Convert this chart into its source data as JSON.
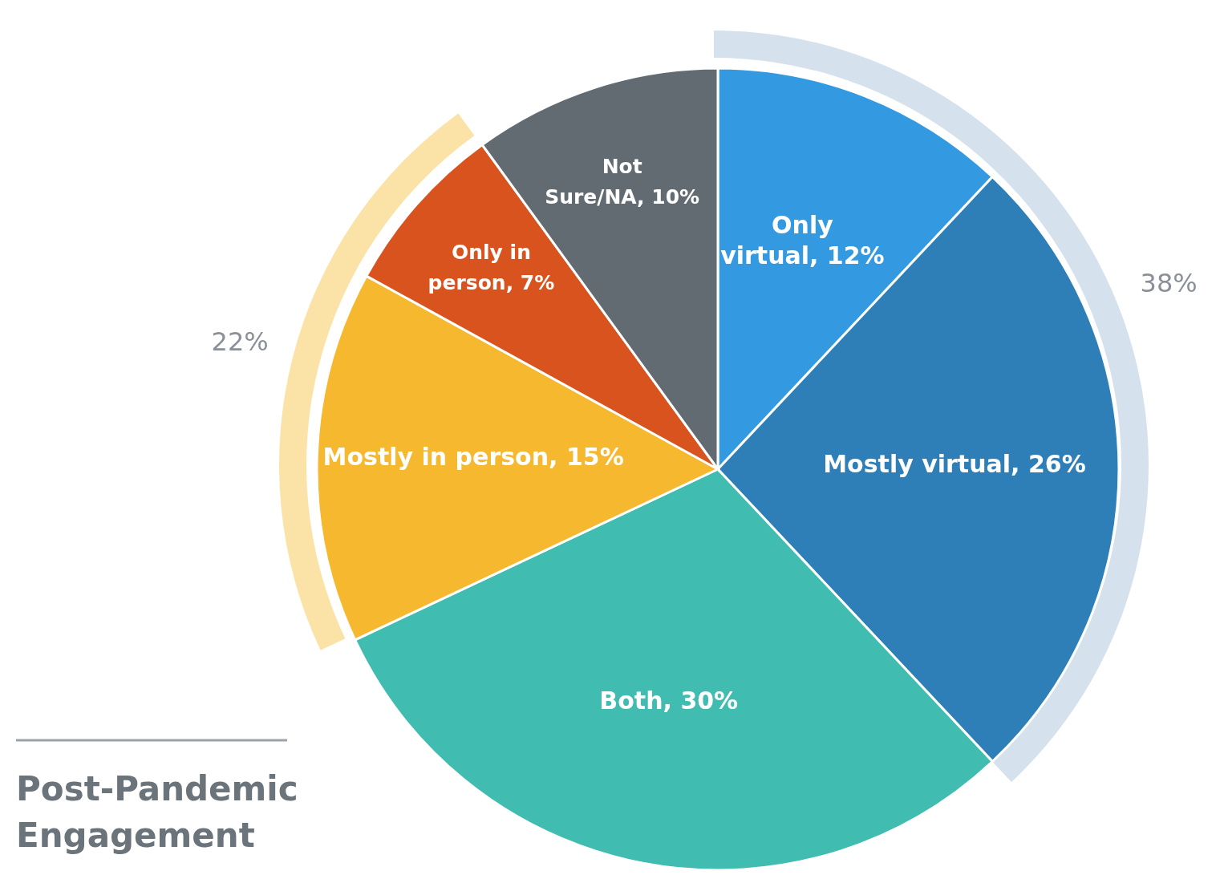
{
  "chart_data": {
    "type": "pie",
    "title": "Post-Pandemic Engagement",
    "categories": [
      "Only virtual",
      "Mostly virtual",
      "Both",
      "Mostly in person",
      "Only in person",
      "Not Sure/NA"
    ],
    "values": [
      12,
      26,
      30,
      15,
      7,
      10
    ],
    "value_labels": [
      "12%",
      "26%",
      "30%",
      "15%",
      "7%",
      "10%"
    ],
    "colors": [
      "#3399e0",
      "#2e7fb8",
      "#40bcb0",
      "#f5b82e",
      "#d9531e",
      "#636b72"
    ],
    "annotations": [
      "38%",
      "22%"
    ],
    "legend": false
  }
}
